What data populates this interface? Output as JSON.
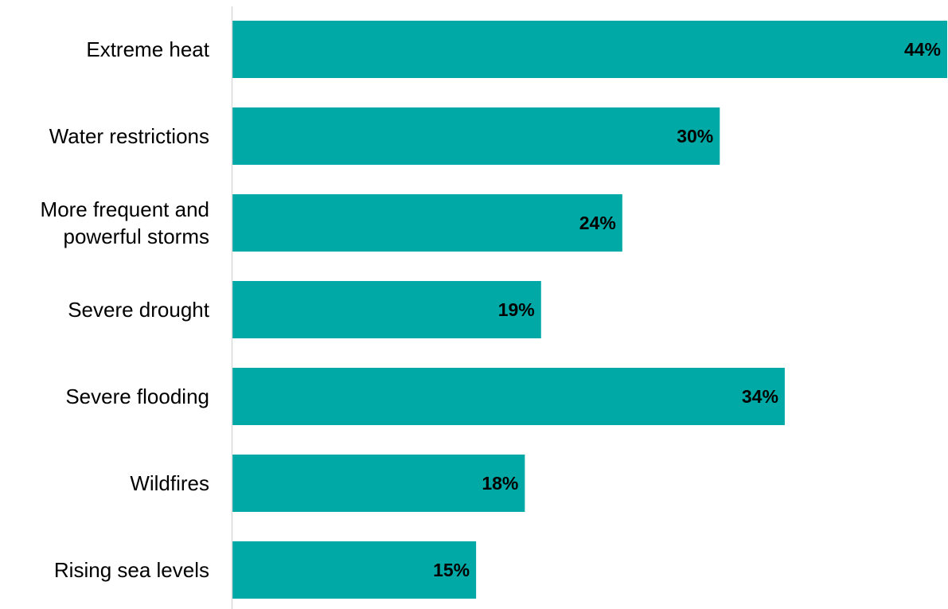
{
  "chart_data": {
    "type": "bar",
    "orientation": "horizontal",
    "categories": [
      "Extreme heat",
      "Water restrictions",
      "More frequent and powerful storms",
      "Severe drought",
      "Severe flooding",
      "Wildfires",
      "Rising sea levels"
    ],
    "category_label_lines": [
      [
        "Extreme heat"
      ],
      [
        "Water restrictions"
      ],
      [
        "More frequent and",
        "powerful storms"
      ],
      [
        "Severe drought"
      ],
      [
        "Severe flooding"
      ],
      [
        "Wildfires"
      ],
      [
        "Rising sea levels"
      ]
    ],
    "values": [
      44,
      30,
      24,
      19,
      34,
      18,
      15
    ],
    "value_labels": [
      "44%",
      "30%",
      "24%",
      "19%",
      "34%",
      "18%",
      "15%"
    ],
    "xlim": [
      0,
      44
    ],
    "grid": false,
    "legend": "none",
    "title": "",
    "xlabel": "",
    "ylabel": ""
  },
  "colors": {
    "bar": "#00a9a6",
    "axis": "#d9d9d9",
    "text": "#000000"
  }
}
